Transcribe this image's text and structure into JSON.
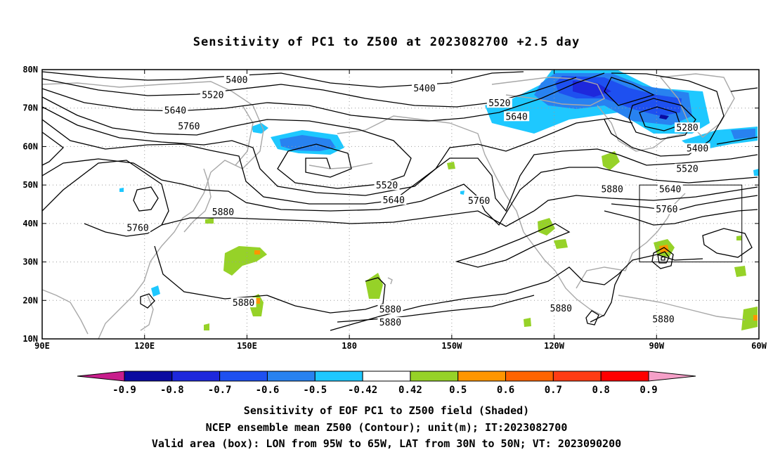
{
  "title": "Sensitivity of PC1 to Z500 at 2023082700 +2.5 day",
  "map": {
    "lon_range": [
      90,
      300
    ],
    "lat_range": [
      10,
      80
    ],
    "lat_ticks": [
      {
        "value": 10,
        "label": "10N"
      },
      {
        "value": 20,
        "label": "20N"
      },
      {
        "value": 30,
        "label": "30N"
      },
      {
        "value": 40,
        "label": "40N"
      },
      {
        "value": 50,
        "label": "50N"
      },
      {
        "value": 60,
        "label": "60N"
      },
      {
        "value": 70,
        "label": "70N"
      },
      {
        "value": 80,
        "label": "80N"
      }
    ],
    "lon_ticks": [
      {
        "value": 90,
        "label": "90E"
      },
      {
        "value": 120,
        "label": "120E"
      },
      {
        "value": 150,
        "label": "150E"
      },
      {
        "value": 180,
        "label": "180"
      },
      {
        "value": 210,
        "label": "150W"
      },
      {
        "value": 240,
        "label": "120W"
      },
      {
        "value": 270,
        "label": "90W"
      },
      {
        "value": 300,
        "label": "60W"
      }
    ],
    "grid": "dotted",
    "valid_box": {
      "lon": [
        265,
        295
      ],
      "lat": [
        30,
        50
      ]
    },
    "contour_labels": [
      {
        "text": "5400",
        "lon": 147,
        "lat": 77.3
      },
      {
        "text": "5520",
        "lon": 140,
        "lat": 73.3
      },
      {
        "text": "5640",
        "lon": 129,
        "lat": 69.3
      },
      {
        "text": "5760",
        "lon": 133,
        "lat": 65.2
      },
      {
        "text": "5400",
        "lon": 202,
        "lat": 75.1
      },
      {
        "text": "5520",
        "lon": 224,
        "lat": 71.2
      },
      {
        "text": "5640",
        "lon": 229,
        "lat": 67.7
      },
      {
        "text": "5280",
        "lon": 279,
        "lat": 64.8
      },
      {
        "text": "5400",
        "lon": 282,
        "lat": 59.4
      },
      {
        "text": "5520",
        "lon": 279,
        "lat": 54.1
      },
      {
        "text": "5640",
        "lon": 274,
        "lat": 48.8
      },
      {
        "text": "5760",
        "lon": 273,
        "lat": 43.6
      },
      {
        "text": "5880",
        "lon": 257,
        "lat": 48.8
      },
      {
        "text": "5520",
        "lon": 191,
        "lat": 49.8
      },
      {
        "text": "5640",
        "lon": 193,
        "lat": 46.0
      },
      {
        "text": "5760",
        "lon": 218,
        "lat": 45.8
      },
      {
        "text": "5880",
        "lon": 143,
        "lat": 42.9
      },
      {
        "text": "5760",
        "lon": 118,
        "lat": 38.8
      },
      {
        "text": "5880",
        "lon": 149,
        "lat": 19.3
      },
      {
        "text": "5880",
        "lon": 192,
        "lat": 17.6
      },
      {
        "text": "5880",
        "lon": 192,
        "lat": 14.2
      },
      {
        "text": "5880",
        "lon": 242,
        "lat": 17.9
      },
      {
        "text": "5880",
        "lon": 272,
        "lat": 15.0
      }
    ]
  },
  "colorbar": {
    "colors": [
      "#c81e8c",
      "#0a0aa0",
      "#1e28dc",
      "#1e50f0",
      "#2882f0",
      "#1ec8ff",
      "#ffffff",
      "#96d228",
      "#ff9600",
      "#ff6400",
      "#ff3c14",
      "#ff0000",
      "#f5a0c8"
    ],
    "labels": [
      "-0.9",
      "-0.8",
      "-0.7",
      "-0.6",
      "-0.5",
      "-0.42",
      "0.42",
      "0.5",
      "0.6",
      "0.7",
      "0.8",
      "0.9"
    ]
  },
  "footer": {
    "line1": "Sensitivity of EOF PC1 to Z500 field (Shaded)",
    "line2": "NCEP ensemble mean Z500 (Contour); unit(m); IT:2023082700",
    "line3": "Valid area (box): LON from 95W to 65W, LAT from 30N to 50N; VT: 2023090200"
  }
}
